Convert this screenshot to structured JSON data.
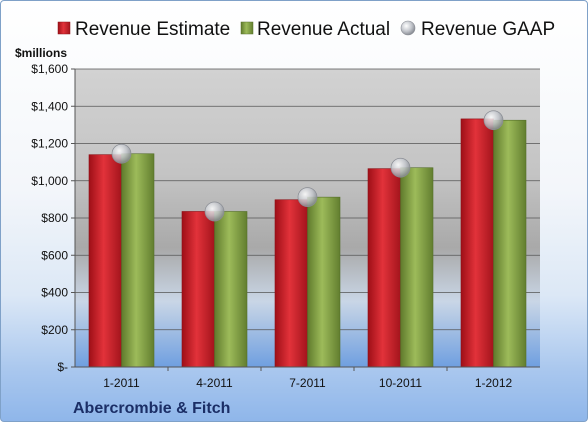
{
  "chart_data": {
    "type": "bar",
    "categories": [
      "1-2011",
      "4-2011",
      "7-2011",
      "10-2011",
      "1-2012"
    ],
    "series": [
      {
        "name": "Revenue Estimate",
        "kind": "bar",
        "color": "#cc1f27",
        "values": [
          1140,
          835,
          898,
          1065,
          1332
        ]
      },
      {
        "name": "Revenue Actual",
        "kind": "bar",
        "color": "#86a447",
        "values": [
          1145,
          835,
          912,
          1070,
          1325
        ]
      },
      {
        "name": "Revenue GAAP",
        "kind": "marker",
        "color": "#b8bcc4",
        "values": [
          1145,
          835,
          912,
          1070,
          1325
        ]
      }
    ],
    "ylabel": "$millions",
    "ylim": [
      0,
      1600
    ],
    "yticks": [
      0,
      200,
      400,
      600,
      800,
      1000,
      1200,
      1400,
      1600
    ],
    "ytick_labels": [
      "$-",
      "$200",
      "$400",
      "$600",
      "$800",
      "$1,000",
      "$1,200",
      "$1,400",
      "$1,600"
    ],
    "legend_position": "top",
    "grid": true,
    "footer": "Abercrombie & Fitch"
  }
}
